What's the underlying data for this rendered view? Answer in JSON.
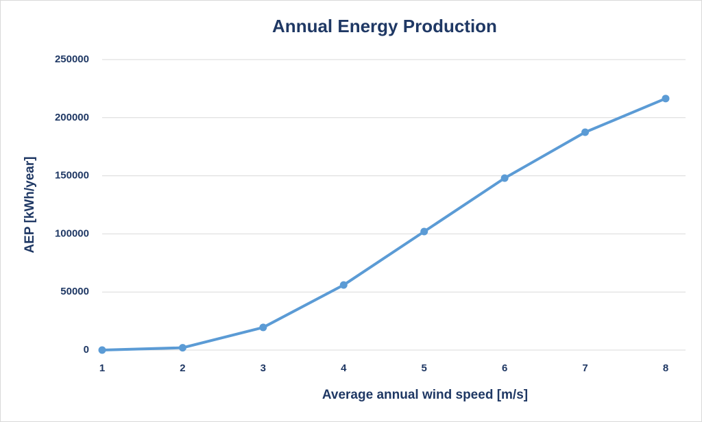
{
  "chart_data": {
    "type": "line",
    "title": "Annual Energy Production",
    "x_label": "Average annual wind speed [m/s]",
    "y_label": "AEP [kWh/year]",
    "x": [
      1,
      2,
      3,
      4,
      5,
      6,
      7,
      8
    ],
    "series": [
      {
        "name": "AEP",
        "color": "#5b9bd5",
        "values": [
          0,
          2000,
          19500,
          56000,
          102000,
          148000,
          187500,
          216500
        ]
      }
    ],
    "xlim": [
      1,
      8
    ],
    "xticks": [
      1,
      2,
      3,
      4,
      5,
      6,
      7,
      8
    ],
    "ylim": [
      0,
      250000
    ],
    "yticks": [
      0,
      50000,
      100000,
      150000,
      200000,
      250000
    ],
    "grid": true
  }
}
